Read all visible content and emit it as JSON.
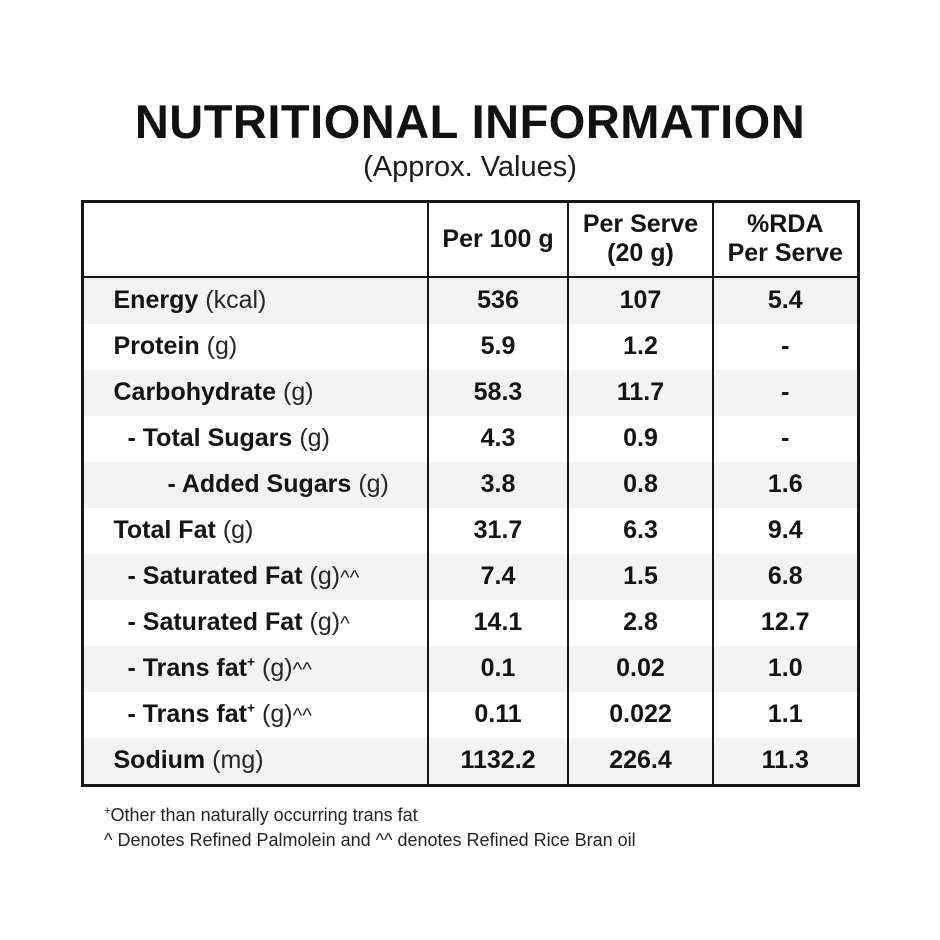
{
  "title": "NUTRITIONAL INFORMATION",
  "subtitle": "(Approx. Values)",
  "table": {
    "headers": [
      {
        "line1": "Per 100 g",
        "line2": ""
      },
      {
        "line1": "Per Serve",
        "line2": "(20 g)"
      },
      {
        "line1": "%RDA",
        "line2": "Per Serve"
      }
    ],
    "rows": [
      {
        "name": "Energy",
        "unit": "(kcal)",
        "values": [
          "536",
          "107",
          "5.4"
        ]
      },
      {
        "name": "Protein",
        "unit": "(g)",
        "values": [
          "5.9",
          "1.2",
          "-"
        ]
      },
      {
        "name": "Carbohydrate",
        "unit": "(g)",
        "values": [
          "58.3",
          "11.7",
          "-"
        ]
      },
      {
        "name": "- Total Sugars",
        "unit": "(g)",
        "values": [
          "4.3",
          "0.9",
          "-"
        ]
      },
      {
        "name": "- Added Sugars",
        "unit": "(g)",
        "values": [
          "3.8",
          "0.8",
          "1.6"
        ]
      },
      {
        "name": "Total Fat",
        "unit": "(g)",
        "values": [
          "31.7",
          "6.3",
          "9.4"
        ]
      },
      {
        "name": "- Saturated Fat",
        "unit": "(g)",
        "unit_sup": "^^",
        "values": [
          "7.4",
          "1.5",
          "6.8"
        ]
      },
      {
        "name": "- Saturated Fat",
        "unit": "(g)",
        "unit_sup": "^",
        "values": [
          "14.1",
          "2.8",
          "12.7"
        ]
      },
      {
        "name": "- Trans fat",
        "name_sup": "+",
        "unit": "(g)",
        "unit_sup": "^^",
        "values": [
          "0.1",
          "0.02",
          "1.0"
        ]
      },
      {
        "name": "- Trans fat",
        "name_sup": "+",
        "unit": "(g)",
        "unit_sup": "^^",
        "values": [
          "0.11",
          "0.022",
          "1.1"
        ]
      },
      {
        "name": "Sodium",
        "unit": "(mg)",
        "values": [
          "1132.2",
          "226.4",
          "11.3"
        ]
      }
    ]
  },
  "footnotes": [
    {
      "sup": "+",
      "text": "Other than naturally occurring trans fat"
    },
    {
      "text": "^ Denotes Refined Palmolein and ^^ denotes Refined Rice Bran oil"
    }
  ],
  "colors": {
    "border": "#161616",
    "stripe": "#f3f3f3",
    "text": "#1b1b1b",
    "background": "#ffffff"
  }
}
